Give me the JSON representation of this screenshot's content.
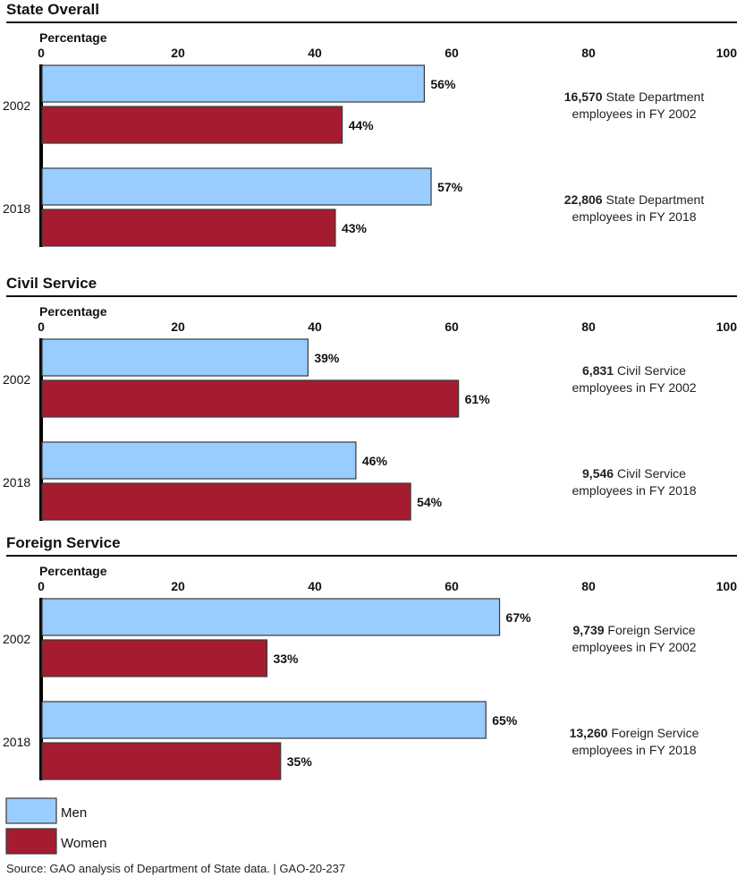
{
  "chart_data": {
    "type": "bar",
    "orientation": "horizontal",
    "xlabel": "Percentage",
    "xlim": [
      0,
      100
    ],
    "xticks": [
      0,
      20,
      40,
      60,
      80,
      100
    ],
    "categories": [
      "2002",
      "2018"
    ],
    "legend": [
      {
        "name": "Men",
        "color": "#99ccff"
      },
      {
        "name": "Women",
        "color": "#a51c30"
      }
    ],
    "legend_position": "bottom-left",
    "source": "Source: GAO analysis of Department of State data.  |  GAO-20-237",
    "panels": [
      {
        "title": "State Overall",
        "series": [
          {
            "name": "Men",
            "values": [
              56,
              57
            ]
          },
          {
            "name": "Women",
            "values": [
              44,
              43
            ]
          }
        ],
        "notes": [
          {
            "count": "16,570",
            "line1": " State Department",
            "line2": "employees in FY 2002"
          },
          {
            "count": "22,806",
            "line1": " State Department",
            "line2": "employees in FY 2018"
          }
        ]
      },
      {
        "title": "Civil Service",
        "series": [
          {
            "name": "Men",
            "values": [
              39,
              46
            ]
          },
          {
            "name": "Women",
            "values": [
              61,
              54
            ]
          }
        ],
        "notes": [
          {
            "count": "6,831",
            "line1": " Civil Service",
            "line2": "employees in FY 2002"
          },
          {
            "count": "9,546",
            "line1": " Civil Service",
            "line2": "employees in FY 2018"
          }
        ]
      },
      {
        "title": "Foreign Service",
        "series": [
          {
            "name": "Men",
            "values": [
              67,
              65
            ]
          },
          {
            "name": "Women",
            "values": [
              33,
              35
            ]
          }
        ],
        "notes": [
          {
            "count": "9,739",
            "line1": " Foreign Service",
            "line2": "employees in FY 2002"
          },
          {
            "count": "13,260",
            "line1": " Foreign Service",
            "line2": "employees in FY 2018"
          }
        ]
      }
    ]
  }
}
